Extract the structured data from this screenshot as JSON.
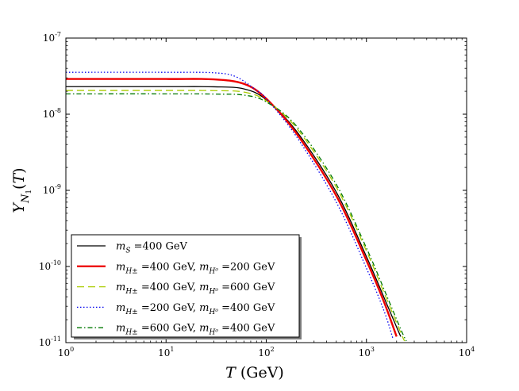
{
  "chart_data": {
    "type": "line",
    "title": "",
    "xlabel": "T (GeV)",
    "ylabel": "Y_N1(T)",
    "xlabel_parts": {
      "symbol": "T",
      "unit": " (GeV)"
    },
    "ylabel_parts": {
      "symbol": "Y",
      "sub": "N",
      "subsub": "1",
      "paren_open": "(",
      "var": "T",
      "paren_close": ")"
    },
    "xscale": "log",
    "yscale": "log",
    "xlim": [
      1,
      10000
    ],
    "ylim": [
      1e-11,
      1e-07
    ],
    "x_ticks": [
      {
        "base": "10",
        "exp": "0",
        "value": 1
      },
      {
        "base": "10",
        "exp": "1",
        "value": 10
      },
      {
        "base": "10",
        "exp": "2",
        "value": 100
      },
      {
        "base": "10",
        "exp": "3",
        "value": 1000
      },
      {
        "base": "10",
        "exp": "4",
        "value": 10000
      }
    ],
    "y_ticks": [
      {
        "base": "10",
        "exp": "-11",
        "value": 1e-11
      },
      {
        "base": "10",
        "exp": "-10",
        "value": 1e-10
      },
      {
        "base": "10",
        "exp": "-9",
        "value": 1e-09
      },
      {
        "base": "10",
        "exp": "-8",
        "value": 1e-08
      },
      {
        "base": "10",
        "exp": "-7",
        "value": 1e-07
      }
    ],
    "legend_position": "lower-left",
    "series": [
      {
        "name": "m_S = 400 GeV",
        "legend": [
          {
            "t": "m",
            "it": true
          },
          {
            "t": "S",
            "sub": true,
            "it": true
          },
          {
            "t": " =400 GeV"
          }
        ],
        "color": "#000000",
        "width": 1.3,
        "dash": "",
        "x": [
          1,
          10,
          30,
          60,
          100,
          200,
          500,
          1000,
          1500,
          2000,
          2200
        ],
        "y": [
          2.3e-08,
          2.3e-08,
          2.29e-08,
          2.15e-08,
          1.55e-08,
          6e-09,
          9.5e-10,
          1.35e-10,
          3.9e-11,
          1.6e-11,
          1.2e-11
        ]
      },
      {
        "name": "m_H± = 400 GeV, m_H0 = 200 GeV",
        "legend": [
          {
            "t": "m",
            "it": true
          },
          {
            "t": "H±",
            "sub": true,
            "it": true
          },
          {
            "t": " =400 GeV, "
          },
          {
            "t": "m",
            "it": true
          },
          {
            "t": "H⁰",
            "sub": true,
            "it": true
          },
          {
            "t": " =200 GeV"
          }
        ],
        "color": "#ee0000",
        "width": 2.4,
        "dash": "",
        "x": [
          1,
          10,
          30,
          60,
          100,
          200,
          500,
          1000,
          1500,
          2000
        ],
        "y": [
          2.9e-08,
          2.9e-08,
          2.87e-08,
          2.5e-08,
          1.6e-08,
          5.6e-09,
          8.5e-10,
          1.2e-10,
          3.4e-11,
          1.2e-11
        ]
      },
      {
        "name": "m_H± = 400 GeV, m_H0 = 600 GeV",
        "legend": [
          {
            "t": "m",
            "it": true
          },
          {
            "t": "H±",
            "sub": true,
            "it": true
          },
          {
            "t": " =400 GeV, "
          },
          {
            "t": "m",
            "it": true
          },
          {
            "t": "H⁰",
            "sub": true,
            "it": true
          },
          {
            "t": " =600 GeV"
          }
        ],
        "color": "#aacc00",
        "width": 1.3,
        "dash": "9,5",
        "x": [
          1,
          10,
          30,
          60,
          100,
          200,
          500,
          1000,
          1500,
          2200,
          2400
        ],
        "y": [
          2.05e-08,
          2.05e-08,
          2.04e-08,
          1.95e-08,
          1.5e-08,
          6.6e-09,
          1.1e-09,
          1.6e-10,
          4.5e-11,
          1.35e-11,
          1.05e-11
        ]
      },
      {
        "name": "m_H± = 200 GeV, m_H0 = 400 GeV",
        "legend": [
          {
            "t": "m",
            "it": true
          },
          {
            "t": "H±",
            "sub": true,
            "it": true
          },
          {
            "t": " =200 GeV, "
          },
          {
            "t": "m",
            "it": true
          },
          {
            "t": "H⁰",
            "sub": true,
            "it": true
          },
          {
            "t": " =400 GeV"
          }
        ],
        "color": "#0000ee",
        "width": 1.3,
        "dash": "1.5,2.5",
        "x": [
          1,
          10,
          30,
          50,
          80,
          100,
          200,
          500,
          1000,
          1500,
          1850
        ],
        "y": [
          3.55e-08,
          3.55e-08,
          3.5e-08,
          3.1e-08,
          2.05e-08,
          1.6e-08,
          5.1e-09,
          7e-10,
          9.5e-11,
          2.6e-11,
          1.1e-11
        ]
      },
      {
        "name": "m_H± = 600 GeV, m_H0 = 400 GeV",
        "legend": [
          {
            "t": "m",
            "it": true
          },
          {
            "t": "H±",
            "sub": true,
            "it": true
          },
          {
            "t": " =600 GeV, "
          },
          {
            "t": "m",
            "it": true
          },
          {
            "t": "H⁰",
            "sub": true,
            "it": true
          },
          {
            "t": " =400 GeV"
          }
        ],
        "color": "#007700",
        "width": 1.3,
        "dash": "6,3,1.5,3",
        "x": [
          1,
          10,
          30,
          60,
          100,
          200,
          500,
          1000,
          1500,
          2200,
          2500
        ],
        "y": [
          1.85e-08,
          1.85e-08,
          1.84e-08,
          1.78e-08,
          1.45e-08,
          7e-09,
          1.2e-09,
          1.75e-10,
          5e-11,
          1.5e-11,
          1.05e-11
        ]
      }
    ]
  }
}
